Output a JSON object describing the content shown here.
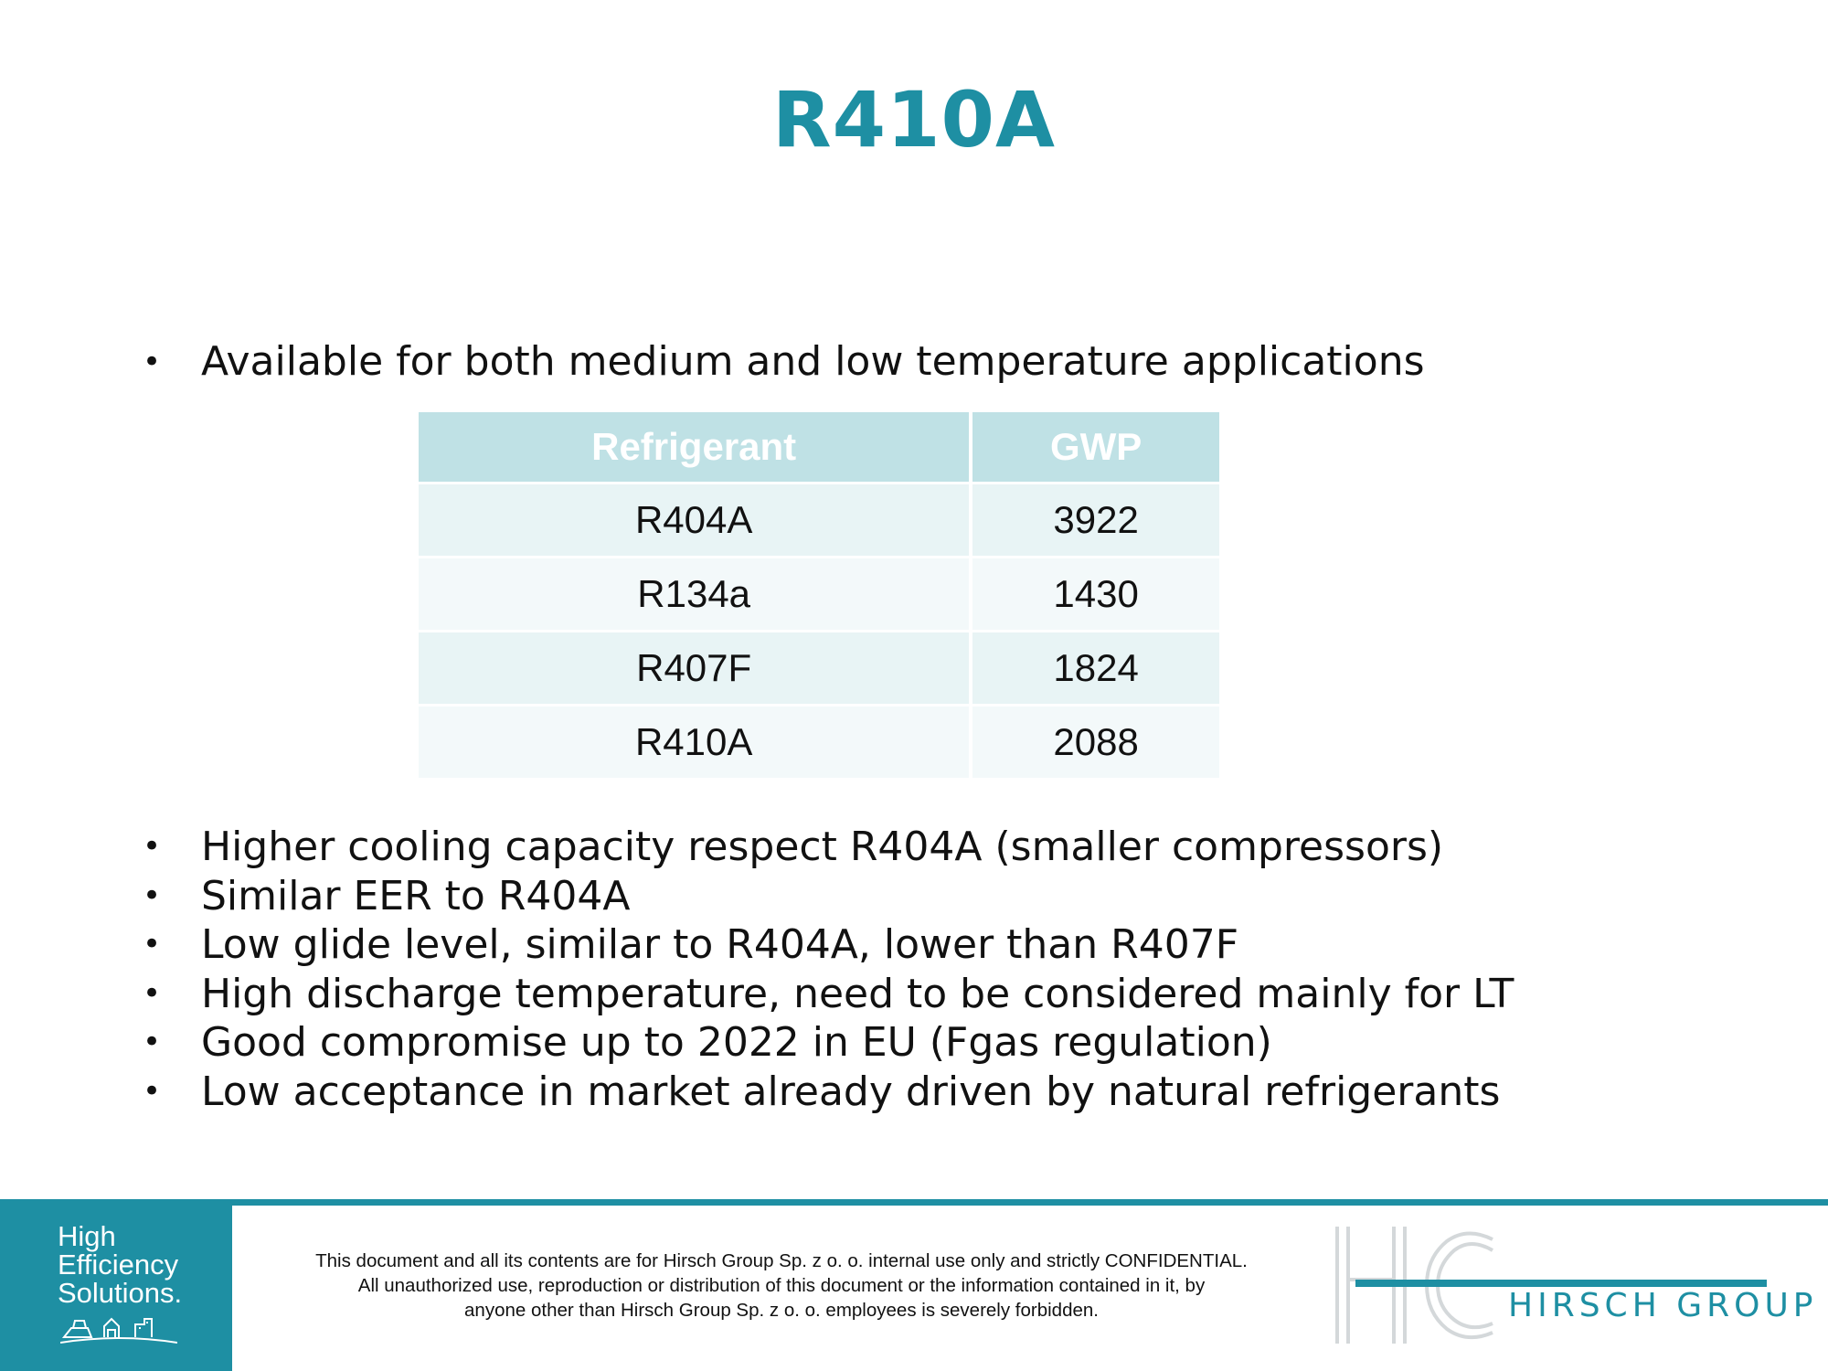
{
  "title": "R410A",
  "intro_bullets": [
    "Available for both medium and low temperature applications"
  ],
  "table": {
    "headers": [
      "Refrigerant",
      "GWP"
    ],
    "rows": [
      [
        "R404A",
        "3922"
      ],
      [
        "R134a",
        "1430"
      ],
      [
        "R407F",
        "1824"
      ],
      [
        "R410A",
        "2088"
      ]
    ]
  },
  "bullets": [
    "Higher cooling capacity respect R404A (smaller compressors)",
    "Similar EER to R404A",
    "Low glide level, similar to R404A, lower than R407F",
    "High discharge temperature, need to be considered mainly for LT",
    "Good compromise up to 2022 in EU (Fgas regulation)",
    "Low acceptance in market already driven by natural refrigerants"
  ],
  "bullet_glyph": "•",
  "footer": {
    "left_logo_lines": [
      "High",
      "Efficiency",
      "Solutions."
    ],
    "disclaimer_lines": [
      "This document and all its contents are for Hirsch Group Sp. z o. o. internal use only and strictly CONFIDENTIAL.",
      "All unauthorized use, reproduction or distribution of this document or the information contained in it, by",
      "anyone other than Hirsch Group Sp. z o. o. employees is severely forbidden."
    ],
    "right_logo_text": "HIRSCH GROUP"
  },
  "colors": {
    "accent": "#1e8fa3",
    "table_header": "#bfe1e5",
    "row_odd": "#e8f4f5",
    "row_even": "#f3f9fa"
  }
}
